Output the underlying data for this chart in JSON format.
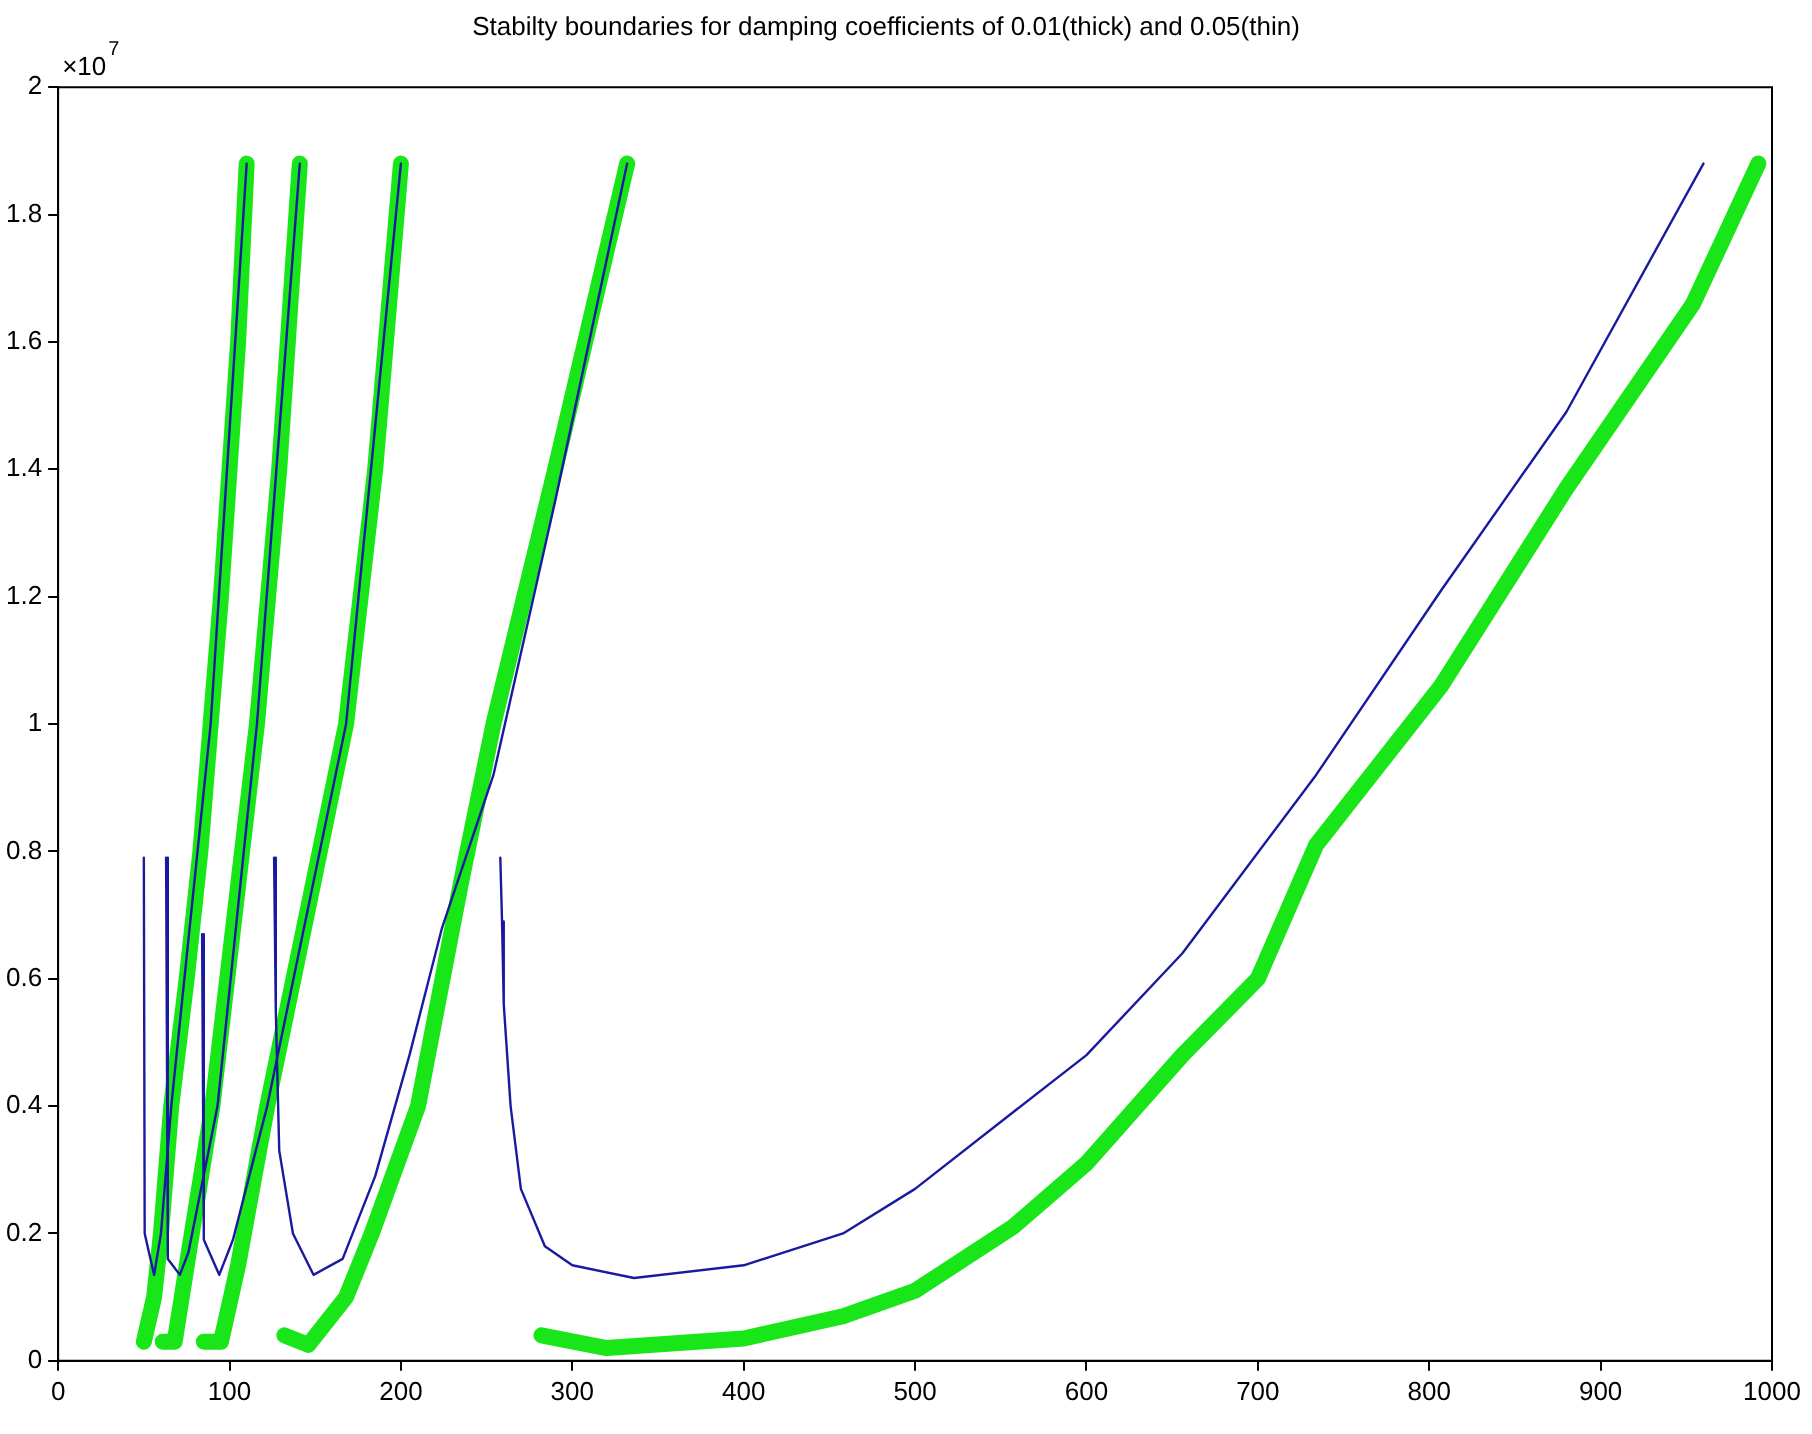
{
  "chart_data": {
    "type": "line",
    "title": "Stabilty boundaries for damping coefficients of 0.01(thick) and 0.05(thin)",
    "annotations": [
      "×10$^{7}$"
    ],
    "xlim": [
      0,
      1000
    ],
    "xticks": [
      0,
      100,
      200,
      300,
      400,
      500,
      600,
      700,
      800,
      900,
      1000
    ],
    "ylim": [
      0,
      2
    ],
    "yticks": [
      0,
      0.2,
      0.4,
      0.6,
      0.8,
      1,
      1.2,
      1.4,
      1.6,
      1.8,
      2
    ],
    "grid": false,
    "legend": false,
    "marker": "none",
    "line_style": "solid",
    "series": [
      {
        "color": "#1a1aa0",
        "x": [
          50,
          50.5,
          53,
          56,
          60,
          66,
          89,
          110
        ],
        "values": [
          0.79,
          0.2,
          0.17,
          0.135,
          0.2,
          0.4,
          1.0,
          1.88
        ]
      },
      {
        "color": "#1a1aa0",
        "x": [
          63,
          64,
          71,
          76,
          93,
          116,
          141
        ],
        "values": [
          0.79,
          0.16,
          0.135,
          0.17,
          0.4,
          1.0,
          1.88
        ]
      },
      {
        "color": "#1a1aa0",
        "x": [
          84,
          85,
          94,
          102,
          122,
          168,
          200
        ],
        "values": [
          0.67,
          0.19,
          0.135,
          0.19,
          0.4,
          1.0,
          1.88
        ]
      },
      {
        "color": "#1a1aa0",
        "x": [
          126,
          127,
          129,
          137,
          149,
          166,
          185,
          205,
          224,
          254,
          290,
          332
        ],
        "values": [
          0.79,
          0.55,
          0.33,
          0.2,
          0.135,
          0.16,
          0.29,
          0.48,
          0.68,
          0.92,
          1.35,
          1.88
        ]
      },
      {
        "color": "#1a1aa0",
        "x": [
          258,
          259,
          260,
          264,
          270,
          284,
          300,
          336,
          400,
          458,
          500,
          557,
          600,
          656,
          734,
          807,
          880,
          960
        ],
        "values": [
          0.79,
          0.69,
          0.56,
          0.4,
          0.27,
          0.18,
          0.15,
          0.13,
          0.15,
          0.2,
          0.27,
          0.39,
          0.48,
          0.64,
          0.92,
          1.21,
          1.49,
          1.88
        ]
      },
      {
        "color": "#19e619",
        "x": [
          50,
          56,
          60,
          66,
          75,
          83,
          89,
          95,
          100,
          105,
          110
        ],
        "values": [
          0.03,
          0.1,
          0.2,
          0.4,
          0.6,
          0.8,
          1.0,
          1.2,
          1.4,
          1.6,
          1.88
        ]
      },
      {
        "color": "#19e619",
        "x": [
          61,
          68,
          78,
          90,
          103,
          116,
          129,
          141
        ],
        "values": [
          0.03,
          0.03,
          0.2,
          0.4,
          0.7,
          1.0,
          1.4,
          1.88
        ]
      },
      {
        "color": "#19e619",
        "x": [
          85,
          95,
          105,
          122,
          145,
          168,
          185,
          200
        ],
        "values": [
          0.03,
          0.03,
          0.15,
          0.4,
          0.7,
          1.0,
          1.4,
          1.88
        ]
      },
      {
        "color": "#19e619",
        "x": [
          132,
          146,
          168,
          183,
          210,
          235,
          254,
          290,
          332
        ],
        "values": [
          0.04,
          0.025,
          0.1,
          0.2,
          0.4,
          0.75,
          1.0,
          1.4,
          1.88
        ]
      },
      {
        "color": "#19e619",
        "x": [
          282,
          320,
          400,
          458,
          500,
          557,
          600,
          656,
          700,
          734,
          807,
          880,
          954,
          992
        ],
        "values": [
          0.04,
          0.02,
          0.035,
          0.07,
          0.11,
          0.21,
          0.31,
          0.48,
          0.6,
          0.81,
          1.06,
          1.37,
          1.66,
          1.88
        ]
      }
    ]
  }
}
